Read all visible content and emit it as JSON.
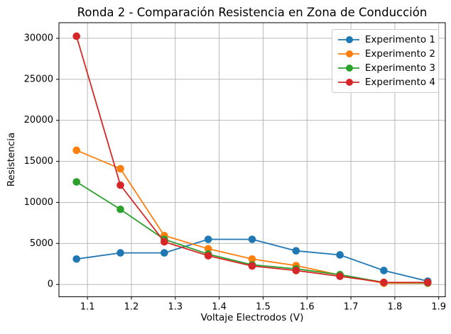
{
  "chart_data": {
    "type": "line",
    "title": "Ronda 2 - Comparación Resistencia en Zona de Conducción",
    "xlabel": "Voltaje Electrodos (V)",
    "ylabel": "Resistencia",
    "x": [
      1.075,
      1.175,
      1.275,
      1.375,
      1.475,
      1.575,
      1.675,
      1.775,
      1.875
    ],
    "series": [
      {
        "name": "Experimento 1",
        "color": "#1f77b4",
        "values": [
          3100,
          3850,
          3850,
          5500,
          5500,
          4100,
          3600,
          1700,
          400
        ]
      },
      {
        "name": "Experimento 2",
        "color": "#ff7f0e",
        "values": [
          16350,
          14100,
          5950,
          4350,
          3100,
          2300,
          1150,
          150,
          150
        ]
      },
      {
        "name": "Experimento 3",
        "color": "#2ca02c",
        "values": [
          12500,
          9150,
          5500,
          3700,
          2400,
          1900,
          1200,
          250,
          200
        ]
      },
      {
        "name": "Experimento 4",
        "color": "#d62728",
        "values": [
          30250,
          12100,
          5200,
          3500,
          2250,
          1700,
          1000,
          250,
          250
        ]
      }
    ],
    "xlim": [
      1.035,
      1.915
    ],
    "ylim": [
      -1500,
      31900
    ],
    "xtick_values": [
      1.1,
      1.2,
      1.3,
      1.4,
      1.5,
      1.6,
      1.7,
      1.8,
      1.9
    ],
    "xtick_labels": [
      "1.1",
      "1.2",
      "1.3",
      "1.4",
      "1.5",
      "1.6",
      "1.7",
      "1.8",
      "1.9"
    ],
    "ytick_values": [
      0,
      5000,
      10000,
      15000,
      20000,
      25000,
      30000
    ],
    "ytick_labels": [
      "0",
      "5000",
      "10000",
      "15000",
      "20000",
      "25000",
      "30000"
    ],
    "grid": true,
    "grid_color": "#b0b0b0",
    "spine_color": "#000000",
    "legend_position": "upper right",
    "marker": "o"
  }
}
